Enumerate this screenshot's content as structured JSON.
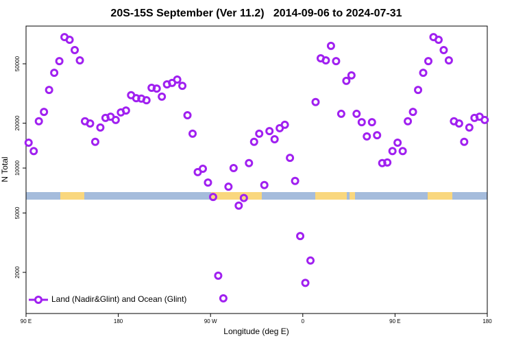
{
  "chart_data": {
    "type": "scatter",
    "title": "20S-15S September (Ver 11.2)   2014-09-06 to 2024-07-31",
    "x_label": "Longitude (deg E)",
    "y_label": "N Total",
    "xlim": [
      90,
      540
    ],
    "xticks": [
      {
        "value": 90,
        "label": "90 E"
      },
      180,
      {
        "value": 270,
        "label": "90 W"
      },
      {
        "value": 360,
        "label": "0"
      },
      {
        "value": 450,
        "label": "90 E"
      },
      {
        "value": 540,
        "label": "180"
      }
    ],
    "ylim": [
      1060,
      89500
    ],
    "yticks": [
      2000,
      5000,
      10000,
      20000,
      50000
    ],
    "y_scale": "log",
    "legend_position": "lower left",
    "x": [
      92.5,
      97.5,
      102.5,
      107.5,
      112.5,
      117.5,
      122.5,
      127.5,
      132.5,
      137.5,
      142.5,
      147.5,
      152.5,
      157.5,
      162.5,
      167.5,
      172.5,
      177.5,
      182.5,
      187.5,
      192.5,
      197.5,
      202.5,
      207.5,
      212.5,
      217.5,
      222.5,
      227.5,
      232.5,
      237.5,
      242.5,
      247.5,
      252.5,
      257.5,
      262.5,
      267.5,
      272.5,
      277.5,
      282.5,
      287.5,
      292.5,
      297.5,
      302.5,
      307.5,
      312.5,
      317.5,
      322.5,
      327.5,
      332.5,
      337.5,
      342.5,
      347.5,
      352.5,
      357.5,
      362.5,
      367.5,
      372.5,
      377.5,
      382.5,
      387.5,
      392.5,
      397.5,
      402.5,
      407.5,
      412.5,
      417.5,
      422.5,
      427.5,
      432.5,
      437.5,
      442.5,
      447.5,
      452.5,
      457.5,
      462.5,
      467.5,
      472.5,
      477.5,
      482.5,
      487.5,
      492.5,
      497.5,
      502.5,
      507.5,
      512.5,
      517.5,
      522.5,
      527.5,
      532.5,
      537.5
    ],
    "series": [
      {
        "name": "Land (Nadir&Glint) and Ocean (Glint)",
        "color": "#a020f0",
        "values": [
          14800,
          13000,
          20600,
          23800,
          33400,
          43500,
          52100,
          75500,
          72400,
          61800,
          52700,
          20600,
          19900,
          15000,
          18700,
          21700,
          22100,
          21000,
          23600,
          24300,
          30800,
          29400,
          29200,
          28500,
          34500,
          34100,
          30100,
          36400,
          37200,
          39200,
          35600,
          22600,
          17000,
          9400,
          9900,
          8000,
          6400,
          1900,
          1340,
          7500,
          10000,
          5600,
          6300,
          10800,
          15000,
          17000,
          7700,
          17700,
          15600,
          18500,
          19500,
          11700,
          8200,
          3500,
          1700,
          2400,
          27700,
          54400,
          52700,
          65900,
          52100,
          23100,
          38400,
          41800,
          23100,
          20300,
          16300,
          20300,
          16600,
          10800,
          10900,
          13000,
          14800,
          13000,
          20600,
          23800,
          33400,
          43500,
          52100,
          75500,
          72400,
          61800,
          52700,
          20600,
          19900,
          15000,
          18700,
          21700,
          22100,
          21000
        ]
      }
    ]
  }
}
